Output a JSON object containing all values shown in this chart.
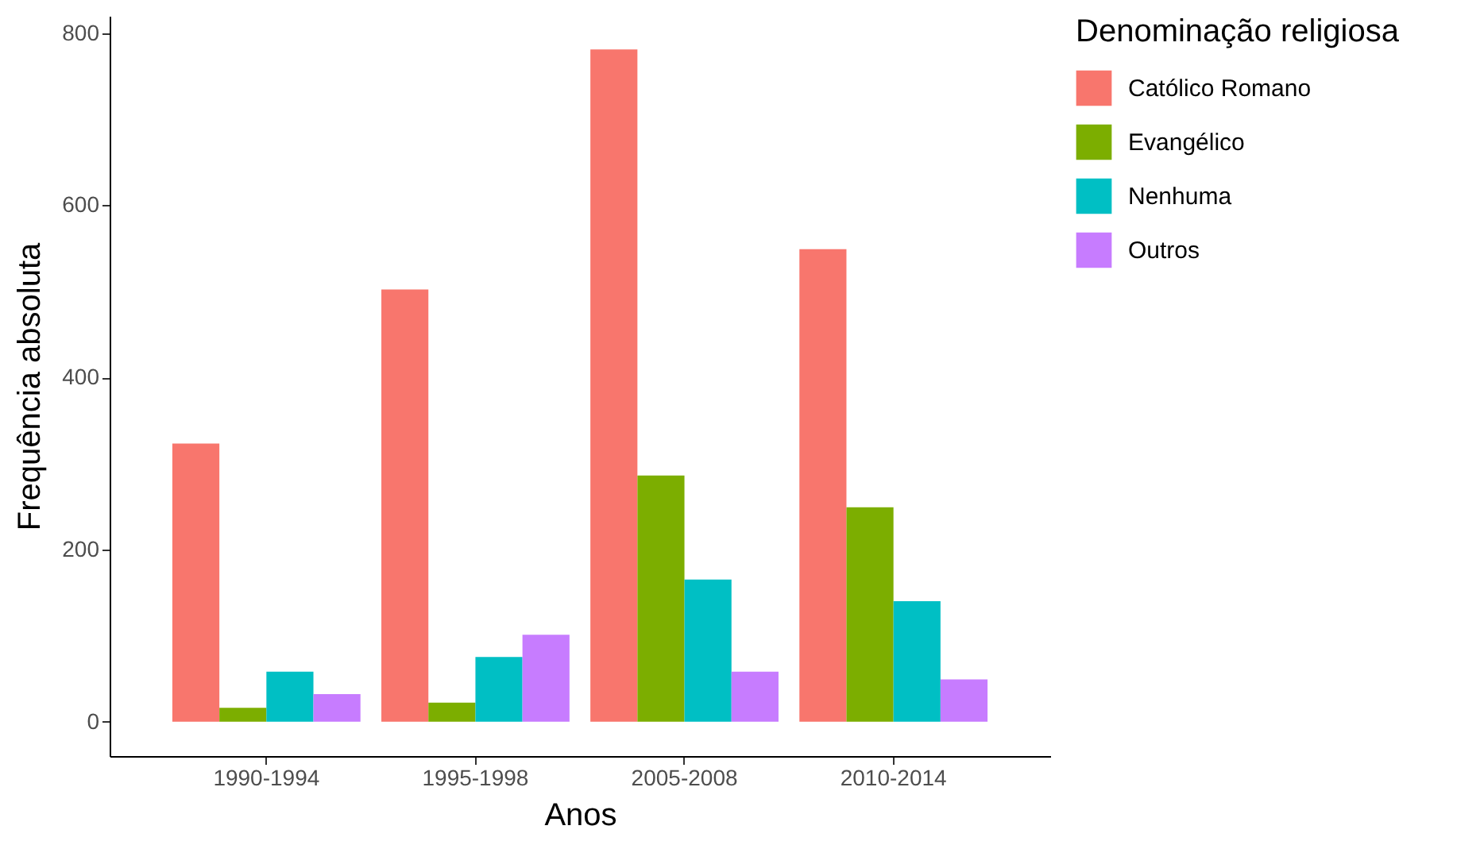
{
  "chart_data": {
    "type": "bar",
    "xlabel": "Anos",
    "ylabel": "Frequência absoluta",
    "legend_title": "Denominação religiosa",
    "categories": [
      "1990-1994",
      "1995-1998",
      "2005-2008",
      "2010-2014"
    ],
    "series": [
      {
        "name": "Católico Romano",
        "color": "#f8766d",
        "values": [
          323,
          502,
          781,
          549
        ]
      },
      {
        "name": "Evangélico",
        "color": "#7cae00",
        "values": [
          16,
          22,
          286,
          249
        ]
      },
      {
        "name": "Nenhuma",
        "color": "#00bfc4",
        "values": [
          58,
          75,
          165,
          140
        ]
      },
      {
        "name": "Outros",
        "color": "#c77cff",
        "values": [
          32,
          101,
          58,
          49
        ]
      }
    ],
    "ylim": [
      -40,
      820
    ],
    "yticks": [
      0,
      200,
      400,
      600,
      800
    ],
    "grid": false,
    "legend": "right"
  }
}
